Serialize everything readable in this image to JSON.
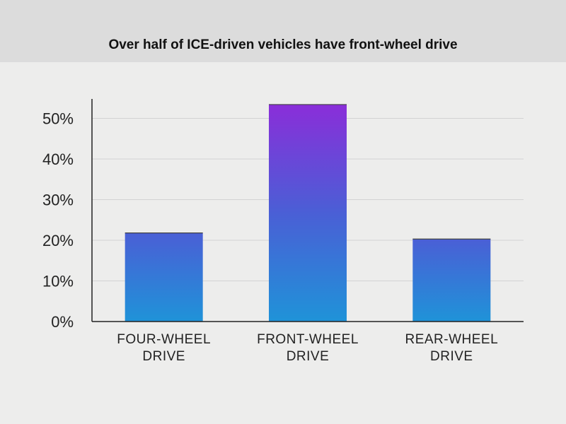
{
  "chart_data": {
    "type": "bar",
    "title": "Over half of ICE-driven vehicles have front-wheel drive",
    "xlabel": "",
    "ylabel": "",
    "categories": [
      [
        "FOUR-WHEEL",
        "DRIVE"
      ],
      [
        "FRONT-WHEEL",
        "DRIVE"
      ],
      [
        "REAR-WHEEL",
        "DRIVE"
      ]
    ],
    "values": [
      21.8,
      53.4,
      20.3
    ],
    "unit": "%",
    "ylim": [
      0,
      55
    ],
    "yticks": [
      0,
      10,
      20,
      30,
      40,
      50
    ],
    "ytick_labels": [
      "0%",
      "10%",
      "20%",
      "30%",
      "40%",
      "50%"
    ],
    "grid": true,
    "legend": "none",
    "colors": {
      "bar_top_peak": "#8a2ed9",
      "bar_mid": "#4a5fd6",
      "bar_bottom": "#1f93d8",
      "grid": "#d3d3d3",
      "axis": "#222222",
      "title_band": "#dcdcdc",
      "background": "#ededec"
    }
  }
}
